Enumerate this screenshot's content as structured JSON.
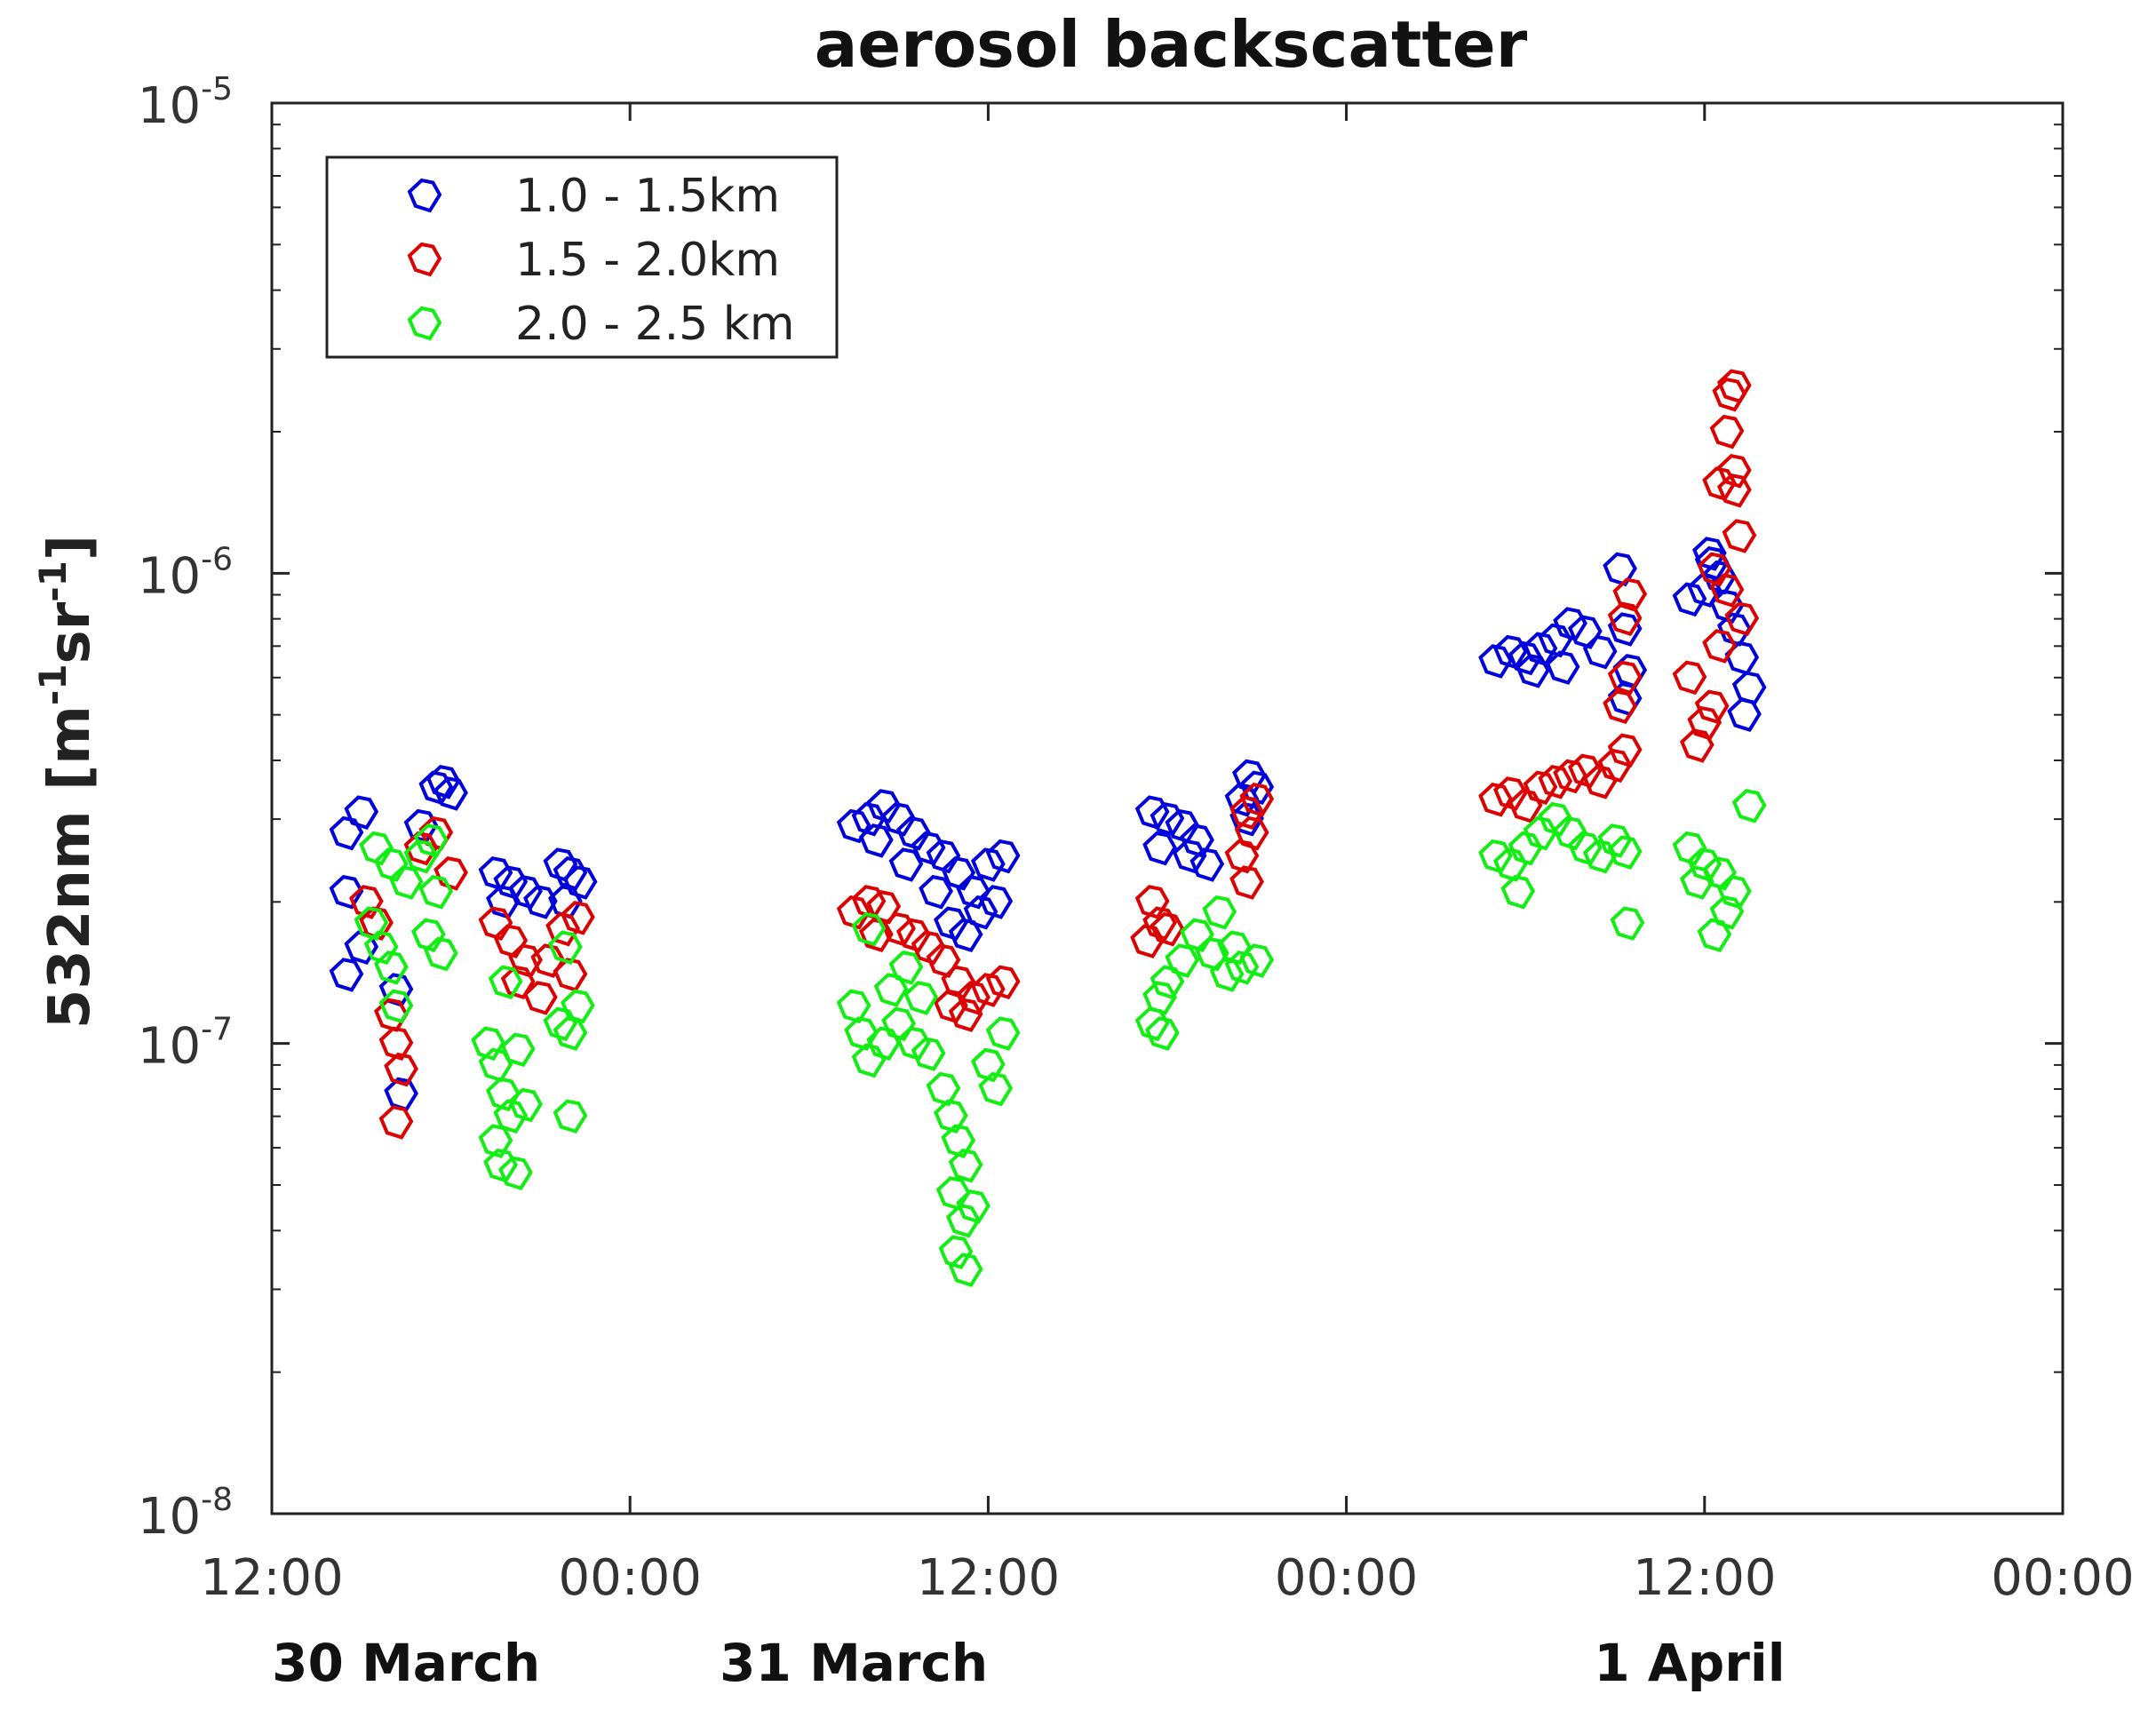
{
  "chart_data": {
    "type": "scatter",
    "title": "aerosol backscatter",
    "ylabel": {
      "prefix": "532nm [m",
      "exp1": "-1",
      "middle": "sr",
      "exp2": "-1",
      "suffix": "]"
    },
    "yscale": "log",
    "ylim": [
      1e-08,
      1e-05
    ],
    "y_ticks": [
      {
        "base": "10",
        "exp": "-5",
        "value": 1e-05
      },
      {
        "base": "10",
        "exp": "-6",
        "value": 1e-06
      },
      {
        "base": "10",
        "exp": "-7",
        "value": 1e-07
      },
      {
        "base": "10",
        "exp": "-8",
        "value": 1e-08
      }
    ],
    "xlim": [
      "2021-03-30T12:00",
      "2021-04-02T00:00"
    ],
    "x_ticks": [
      {
        "label": "12:00",
        "t": "2021-03-30T12:00"
      },
      {
        "label": "00:00",
        "t": "2021-03-31T00:00"
      },
      {
        "label": "12:00",
        "t": "2021-03-31T12:00"
      },
      {
        "label": "00:00",
        "t": "2021-04-01T00:00"
      },
      {
        "label": "12:00",
        "t": "2021-04-01T12:00"
      },
      {
        "label": "00:00",
        "t": "2021-04-02T00:00"
      }
    ],
    "date_labels": [
      {
        "label": "30 March",
        "t": "2021-03-30T16:30"
      },
      {
        "label": "31 March",
        "t": "2021-03-31T07:30"
      },
      {
        "label": "1 April",
        "t": "2021-04-01T11:30"
      }
    ],
    "grid": false,
    "legend_position": "top-left",
    "marker": "open-diamond",
    "series": [
      {
        "name": "1.0 - 1.5km",
        "color": "#0000dd",
        "points": [
          [
            "2021-03-30T14:30",
            2.8e-07
          ],
          [
            "2021-03-30T15:00",
            3.1e-07
          ],
          [
            "2021-03-30T14:30",
            2.1e-07
          ],
          [
            "2021-03-30T15:00",
            1.6e-07
          ],
          [
            "2021-03-30T14:30",
            1.4e-07
          ],
          [
            "2021-03-30T16:10",
            1.3e-07
          ],
          [
            "2021-03-30T16:20",
            7.8e-08
          ],
          [
            "2021-03-30T17:30",
            3.5e-07
          ],
          [
            "2021-03-30T18:00",
            3.4e-07
          ],
          [
            "2021-03-30T17:45",
            3.6e-07
          ],
          [
            "2021-03-30T17:00",
            2.9e-07
          ],
          [
            "2021-03-30T19:30",
            2.3e-07
          ],
          [
            "2021-03-30T20:00",
            2.2e-07
          ],
          [
            "2021-03-30T20:30",
            2.1e-07
          ],
          [
            "2021-03-30T21:00",
            2e-07
          ],
          [
            "2021-03-30T19:45",
            2e-07
          ],
          [
            "2021-03-30T21:40",
            2.4e-07
          ],
          [
            "2021-03-30T22:00",
            2.3e-07
          ],
          [
            "2021-03-30T22:20",
            2.2e-07
          ],
          [
            "2021-03-30T21:50",
            2e-07
          ],
          [
            "2021-03-31T07:30",
            2.9e-07
          ],
          [
            "2021-03-31T08:00",
            3e-07
          ],
          [
            "2021-03-31T08:30",
            3.2e-07
          ],
          [
            "2021-03-31T09:00",
            3e-07
          ],
          [
            "2021-03-31T09:30",
            2.8e-07
          ],
          [
            "2021-03-31T10:00",
            2.6e-07
          ],
          [
            "2021-03-31T10:30",
            2.5e-07
          ],
          [
            "2021-03-31T11:00",
            2.3e-07
          ],
          [
            "2021-03-31T11:30",
            2.1e-07
          ],
          [
            "2021-03-31T12:00",
            2.4e-07
          ],
          [
            "2021-03-31T12:30",
            2.5e-07
          ],
          [
            "2021-03-31T11:45",
            1.9e-07
          ],
          [
            "2021-03-31T10:45",
            1.8e-07
          ],
          [
            "2021-03-31T11:15",
            1.7e-07
          ],
          [
            "2021-03-31T08:15",
            2.7e-07
          ],
          [
            "2021-03-31T09:15",
            2.4e-07
          ],
          [
            "2021-03-31T10:15",
            2.1e-07
          ],
          [
            "2021-03-31T12:15",
            2e-07
          ],
          [
            "2021-03-31T17:30",
            3.1e-07
          ],
          [
            "2021-03-31T18:00",
            3e-07
          ],
          [
            "2021-03-31T18:30",
            2.9e-07
          ],
          [
            "2021-03-31T19:00",
            2.7e-07
          ],
          [
            "2021-03-31T17:45",
            2.6e-07
          ],
          [
            "2021-03-31T18:45",
            2.5e-07
          ],
          [
            "2021-03-31T19:20",
            2.4e-07
          ],
          [
            "2021-03-31T20:45",
            3.7e-07
          ],
          [
            "2021-03-31T21:00",
            3.5e-07
          ],
          [
            "2021-03-31T20:30",
            3.3e-07
          ],
          [
            "2021-03-31T20:40",
            3e-07
          ],
          [
            "2021-04-01T05:00",
            6.5e-07
          ],
          [
            "2021-04-01T05:30",
            6.8e-07
          ],
          [
            "2021-04-01T06:00",
            6.6e-07
          ],
          [
            "2021-04-01T06:30",
            6.9e-07
          ],
          [
            "2021-04-01T07:00",
            7.2e-07
          ],
          [
            "2021-04-01T07:30",
            7.8e-07
          ],
          [
            "2021-04-01T08:00",
            7.5e-07
          ],
          [
            "2021-04-01T08:30",
            6.8e-07
          ],
          [
            "2021-04-01T06:15",
            6.2e-07
          ],
          [
            "2021-04-01T07:15",
            6.3e-07
          ],
          [
            "2021-04-01T09:10",
            1.02e-06
          ],
          [
            "2021-04-01T09:20",
            7.6e-07
          ],
          [
            "2021-04-01T09:30",
            6.2e-07
          ],
          [
            "2021-04-01T09:20",
            5.4e-07
          ],
          [
            "2021-04-01T11:30",
            8.8e-07
          ],
          [
            "2021-04-01T12:00",
            9.2e-07
          ],
          [
            "2021-04-01T12:15",
            1.05e-06
          ],
          [
            "2021-04-01T12:30",
            9.8e-07
          ],
          [
            "2021-04-01T12:45",
            8.5e-07
          ],
          [
            "2021-04-01T13:00",
            7.6e-07
          ],
          [
            "2021-04-01T13:15",
            6.6e-07
          ],
          [
            "2021-04-01T13:30",
            5.7e-07
          ],
          [
            "2021-04-01T13:20",
            5e-07
          ],
          [
            "2021-04-01T12:10",
            1.1e-06
          ]
        ]
      },
      {
        "name": "1.5 - 2.0km",
        "color": "#dd0000",
        "points": [
          [
            "2021-03-30T15:10",
            2e-07
          ],
          [
            "2021-03-30T15:30",
            1.8e-07
          ],
          [
            "2021-03-30T16:00",
            1.15e-07
          ],
          [
            "2021-03-30T16:10",
            1e-07
          ],
          [
            "2021-03-30T16:20",
            8.8e-08
          ],
          [
            "2021-03-30T16:10",
            6.8e-08
          ],
          [
            "2021-03-30T17:00",
            2.6e-07
          ],
          [
            "2021-03-30T17:30",
            2.8e-07
          ],
          [
            "2021-03-30T18:00",
            2.3e-07
          ],
          [
            "2021-03-30T19:30",
            1.8e-07
          ],
          [
            "2021-03-30T20:00",
            1.65e-07
          ],
          [
            "2021-03-30T20:30",
            1.5e-07
          ],
          [
            "2021-03-30T21:00",
            1.25e-07
          ],
          [
            "2021-03-30T20:15",
            1.35e-07
          ],
          [
            "2021-03-30T21:15",
            1.5e-07
          ],
          [
            "2021-03-30T21:45",
            1.75e-07
          ],
          [
            "2021-03-30T22:15",
            1.85e-07
          ],
          [
            "2021-03-30T22:00",
            1.4e-07
          ],
          [
            "2021-03-31T07:30",
            1.9e-07
          ],
          [
            "2021-03-31T08:00",
            2e-07
          ],
          [
            "2021-03-31T08:30",
            1.95e-07
          ],
          [
            "2021-03-31T09:00",
            1.75e-07
          ],
          [
            "2021-03-31T09:30",
            1.7e-07
          ],
          [
            "2021-03-31T10:00",
            1.6e-07
          ],
          [
            "2021-03-31T10:30",
            1.5e-07
          ],
          [
            "2021-03-31T11:00",
            1.35e-07
          ],
          [
            "2021-03-31T11:30",
            1.25e-07
          ],
          [
            "2021-03-31T12:00",
            1.3e-07
          ],
          [
            "2021-03-31T12:30",
            1.35e-07
          ],
          [
            "2021-03-31T08:15",
            1.7e-07
          ],
          [
            "2021-03-31T10:45",
            1.2e-07
          ],
          [
            "2021-03-31T11:15",
            1.15e-07
          ],
          [
            "2021-03-31T17:30",
            2e-07
          ],
          [
            "2021-03-31T17:45",
            1.8e-07
          ],
          [
            "2021-03-31T18:00",
            1.75e-07
          ],
          [
            "2021-03-31T17:20",
            1.65e-07
          ],
          [
            "2021-03-31T20:40",
            3.1e-07
          ],
          [
            "2021-03-31T20:50",
            2.8e-07
          ],
          [
            "2021-03-31T20:30",
            2.5e-07
          ],
          [
            "2021-03-31T20:40",
            2.2e-07
          ],
          [
            "2021-03-31T21:00",
            3.3e-07
          ],
          [
            "2021-04-01T05:00",
            3.3e-07
          ],
          [
            "2021-04-01T05:30",
            3.4e-07
          ],
          [
            "2021-04-01T06:00",
            3.2e-07
          ],
          [
            "2021-04-01T06:30",
            3.5e-07
          ],
          [
            "2021-04-01T07:00",
            3.6e-07
          ],
          [
            "2021-04-01T07:30",
            3.7e-07
          ],
          [
            "2021-04-01T08:00",
            3.8e-07
          ],
          [
            "2021-04-01T08:30",
            3.6e-07
          ],
          [
            "2021-04-01T09:00",
            3.9e-07
          ],
          [
            "2021-04-01T09:20",
            4.2e-07
          ],
          [
            "2021-04-01T09:20",
            6e-07
          ],
          [
            "2021-04-01T09:30",
            9e-07
          ],
          [
            "2021-04-01T09:20",
            8e-07
          ],
          [
            "2021-04-01T09:10",
            5.2e-07
          ],
          [
            "2021-04-01T11:30",
            6e-07
          ],
          [
            "2021-04-01T11:45",
            4.3e-07
          ],
          [
            "2021-04-01T12:00",
            4.8e-07
          ],
          [
            "2021-04-01T12:15",
            5.2e-07
          ],
          [
            "2021-04-01T12:30",
            7e-07
          ],
          [
            "2021-04-01T12:45",
            9.2e-07
          ],
          [
            "2021-04-01T13:00",
            1.5e-06
          ],
          [
            "2021-04-01T12:30",
            1.55e-06
          ],
          [
            "2021-04-01T13:00",
            1.65e-06
          ],
          [
            "2021-04-01T13:10",
            1.2e-06
          ],
          [
            "2021-04-01T13:15",
            8e-07
          ],
          [
            "2021-04-01T12:45",
            2e-06
          ],
          [
            "2021-04-01T12:50",
            2.4e-06
          ],
          [
            "2021-04-01T13:00",
            2.5e-06
          ],
          [
            "2021-04-01T12:20",
            1.02e-06
          ]
        ]
      },
      {
        "name": "2.0 - 2.5 km",
        "color": "#11ee11",
        "points": [
          [
            "2021-03-30T15:30",
            2.6e-07
          ],
          [
            "2021-03-30T16:00",
            2.4e-07
          ],
          [
            "2021-03-30T16:30",
            2.2e-07
          ],
          [
            "2021-03-30T17:00",
            2.5e-07
          ],
          [
            "2021-03-30T17:30",
            2.1e-07
          ],
          [
            "2021-03-30T15:20",
            1.8e-07
          ],
          [
            "2021-03-30T15:40",
            1.6e-07
          ],
          [
            "2021-03-30T16:00",
            1.45e-07
          ],
          [
            "2021-03-30T16:10",
            1.2e-07
          ],
          [
            "2021-03-30T17:15",
            1.7e-07
          ],
          [
            "2021-03-30T17:40",
            1.55e-07
          ],
          [
            "2021-03-30T17:20",
            2.7e-07
          ],
          [
            "2021-03-30T19:15",
            1e-07
          ],
          [
            "2021-03-30T19:30",
            9e-08
          ],
          [
            "2021-03-30T19:45",
            7.8e-08
          ],
          [
            "2021-03-30T20:00",
            7e-08
          ],
          [
            "2021-03-30T19:30",
            6.2e-08
          ],
          [
            "2021-03-30T19:40",
            5.5e-08
          ],
          [
            "2021-03-30T20:10",
            5.3e-08
          ],
          [
            "2021-03-30T20:30",
            7.4e-08
          ],
          [
            "2021-03-30T20:15",
            9.7e-08
          ],
          [
            "2021-03-30T19:50",
            1.35e-07
          ],
          [
            "2021-03-30T21:40",
            1.1e-07
          ],
          [
            "2021-03-30T22:00",
            1.05e-07
          ],
          [
            "2021-03-30T22:15",
            1.2e-07
          ],
          [
            "2021-03-30T22:00",
            7e-08
          ],
          [
            "2021-03-30T21:50",
            1.6e-07
          ],
          [
            "2021-03-31T07:30",
            1.2e-07
          ],
          [
            "2021-03-31T07:45",
            1.05e-07
          ],
          [
            "2021-03-31T08:00",
            9.2e-08
          ],
          [
            "2021-03-31T08:30",
            1e-07
          ],
          [
            "2021-03-31T09:00",
            1.1e-07
          ],
          [
            "2021-03-31T09:30",
            1e-07
          ],
          [
            "2021-03-31T10:00",
            9.5e-08
          ],
          [
            "2021-03-31T10:30",
            8e-08
          ],
          [
            "2021-03-31T10:45",
            7e-08
          ],
          [
            "2021-03-31T11:00",
            6.2e-08
          ],
          [
            "2021-03-31T11:15",
            5.5e-08
          ],
          [
            "2021-03-31T10:50",
            4.8e-08
          ],
          [
            "2021-03-31T11:10",
            4.2e-08
          ],
          [
            "2021-03-31T10:55",
            3.6e-08
          ],
          [
            "2021-03-31T11:15",
            3.3e-08
          ],
          [
            "2021-03-31T11:30",
            4.5e-08
          ],
          [
            "2021-03-31T12:00",
            9e-08
          ],
          [
            "2021-03-31T12:30",
            1.05e-07
          ],
          [
            "2021-03-31T12:15",
            8e-08
          ],
          [
            "2021-03-31T08:45",
            1.3e-07
          ],
          [
            "2021-03-31T09:15",
            1.45e-07
          ],
          [
            "2021-03-31T08:00",
            1.75e-07
          ],
          [
            "2021-03-31T09:45",
            1.25e-07
          ],
          [
            "2021-03-31T17:30",
            1.1e-07
          ],
          [
            "2021-03-31T17:45",
            1.25e-07
          ],
          [
            "2021-03-31T18:00",
            1.35e-07
          ],
          [
            "2021-03-31T18:30",
            1.5e-07
          ],
          [
            "2021-03-31T19:00",
            1.7e-07
          ],
          [
            "2021-03-31T19:30",
            1.55e-07
          ],
          [
            "2021-03-31T20:00",
            1.4e-07
          ],
          [
            "2021-03-31T20:30",
            1.45e-07
          ],
          [
            "2021-03-31T21:00",
            1.5e-07
          ],
          [
            "2021-03-31T17:50",
            1.05e-07
          ],
          [
            "2021-03-31T19:45",
            1.9e-07
          ],
          [
            "2021-03-31T20:15",
            1.6e-07
          ],
          [
            "2021-04-01T05:00",
            2.5e-07
          ],
          [
            "2021-04-01T05:30",
            2.4e-07
          ],
          [
            "2021-04-01T06:00",
            2.6e-07
          ],
          [
            "2021-04-01T06:30",
            2.8e-07
          ],
          [
            "2021-04-01T07:00",
            3e-07
          ],
          [
            "2021-04-01T07:30",
            2.8e-07
          ],
          [
            "2021-04-01T08:00",
            2.6e-07
          ],
          [
            "2021-04-01T08:30",
            2.5e-07
          ],
          [
            "2021-04-01T09:00",
            2.7e-07
          ],
          [
            "2021-04-01T09:20",
            2.55e-07
          ],
          [
            "2021-04-01T05:45",
            2.1e-07
          ],
          [
            "2021-04-01T09:25",
            1.8e-07
          ],
          [
            "2021-04-01T11:30",
            2.6e-07
          ],
          [
            "2021-04-01T12:00",
            2.4e-07
          ],
          [
            "2021-04-01T12:30",
            2.3e-07
          ],
          [
            "2021-04-01T13:00",
            2.1e-07
          ],
          [
            "2021-04-01T12:20",
            1.7e-07
          ],
          [
            "2021-04-01T13:30",
            3.2e-07
          ],
          [
            "2021-04-01T12:45",
            1.9e-07
          ],
          [
            "2021-04-01T11:45",
            2.2e-07
          ]
        ]
      }
    ]
  }
}
